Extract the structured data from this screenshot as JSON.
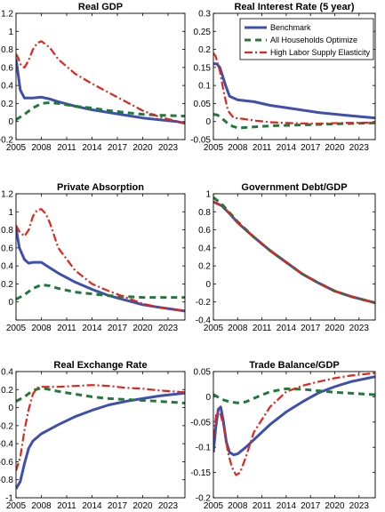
{
  "chart_data": [
    {
      "type": "line",
      "title": "Real GDP",
      "xlim": [
        2005,
        2025
      ],
      "ylim": [
        -0.2,
        1.2
      ],
      "xticks": [
        2005,
        2008,
        2011,
        2014,
        2017,
        2020,
        2023
      ],
      "yticks": [
        -0.2,
        0,
        0.2,
        0.4,
        0.6,
        0.8,
        1,
        1.2
      ],
      "ytick_labels": [
        "-0.2",
        "0",
        "0.2",
        "0.4",
        "0.6",
        "0.8",
        "1",
        "1.2"
      ],
      "series": [
        {
          "style": "benchmark",
          "x": [
            2005,
            2005.5,
            2006,
            2007,
            2008,
            2009,
            2010,
            2012,
            2014,
            2016,
            2018,
            2020,
            2022,
            2024,
            2025
          ],
          "y": [
            0.7,
            0.35,
            0.26,
            0.26,
            0.27,
            0.25,
            0.22,
            0.17,
            0.13,
            0.1,
            0.07,
            0.04,
            0.02,
            0.0,
            -0.02
          ]
        },
        {
          "style": "optimize",
          "x": [
            2005,
            2006,
            2007,
            2008,
            2009,
            2010,
            2012,
            2014,
            2016,
            2018,
            2020,
            2022,
            2025
          ],
          "y": [
            0.02,
            0.08,
            0.15,
            0.2,
            0.21,
            0.2,
            0.17,
            0.15,
            0.12,
            0.1,
            0.08,
            0.07,
            0.06
          ]
        },
        {
          "style": "elastic",
          "x": [
            2005,
            2005.3,
            2005.6,
            2006,
            2006.5,
            2007,
            2007.5,
            2008,
            2009,
            2010,
            2012,
            2014,
            2016,
            2018,
            2020,
            2022,
            2025
          ],
          "y": [
            0.75,
            0.7,
            0.62,
            0.6,
            0.68,
            0.8,
            0.87,
            0.89,
            0.82,
            0.69,
            0.53,
            0.42,
            0.32,
            0.22,
            0.12,
            0.05,
            -0.02
          ]
        }
      ]
    },
    {
      "type": "line",
      "title": "Real Interest Rate (5 year)",
      "xlim": [
        2005,
        2025
      ],
      "ylim": [
        -0.05,
        0.3
      ],
      "xticks": [
        2005,
        2008,
        2011,
        2014,
        2017,
        2020,
        2023
      ],
      "yticks": [
        -0.05,
        0,
        0.05,
        0.1,
        0.15,
        0.2,
        0.25,
        0.3
      ],
      "ytick_labels": [
        "-0.05",
        "0",
        "0.05",
        "0.1",
        "0.15",
        "0.2",
        "0.25",
        "0.3"
      ],
      "series": [
        {
          "style": "benchmark",
          "x": [
            2005,
            2005.4,
            2005.8,
            2006.5,
            2007,
            2008,
            2010,
            2012,
            2015,
            2018,
            2021,
            2025
          ],
          "y": [
            0.16,
            0.16,
            0.15,
            0.1,
            0.07,
            0.06,
            0.055,
            0.045,
            0.035,
            0.025,
            0.018,
            0.01
          ]
        },
        {
          "style": "optimize",
          "x": [
            2005,
            2005.5,
            2006,
            2006.5,
            2007,
            2008,
            2010,
            2012,
            2015,
            2018,
            2021,
            2025
          ],
          "y": [
            0.02,
            0.018,
            0.01,
            0.0,
            -0.01,
            -0.018,
            -0.015,
            -0.012,
            -0.01,
            -0.008,
            -0.006,
            -0.004
          ]
        },
        {
          "style": "elastic",
          "x": [
            2005,
            2005.3,
            2005.8,
            2006.3,
            2006.8,
            2007.5,
            2008.5,
            2010,
            2012,
            2015,
            2018,
            2021,
            2025
          ],
          "y": [
            0.19,
            0.18,
            0.14,
            0.08,
            0.03,
            0.01,
            0.008,
            0.003,
            -0.002,
            -0.005,
            -0.006,
            -0.004,
            -0.003
          ]
        }
      ],
      "legend": {
        "placement": "top-right",
        "entries": [
          "Benchmark",
          "All Households Optimize",
          "High Labor Supply Elasticity"
        ]
      }
    },
    {
      "type": "line",
      "title": "Private Absorption",
      "xlim": [
        2005,
        2025
      ],
      "ylim": [
        -0.2,
        1.2
      ],
      "xticks": [
        2005,
        2008,
        2011,
        2014,
        2017,
        2020,
        2023
      ],
      "yticks": [
        -0.2,
        0,
        0.2,
        0.4,
        0.6,
        0.8,
        1,
        1.2
      ],
      "ytick_labels": [
        "",
        "0",
        "0.2",
        "0.4",
        "0.6",
        "0.8",
        "1",
        "1.2"
      ],
      "series": [
        {
          "style": "benchmark",
          "x": [
            2005,
            2005.4,
            2006,
            2006.5,
            2007,
            2008,
            2009,
            2010,
            2012,
            2014,
            2016,
            2018,
            2020,
            2022,
            2025
          ],
          "y": [
            0.82,
            0.6,
            0.47,
            0.43,
            0.44,
            0.44,
            0.38,
            0.32,
            0.22,
            0.14,
            0.07,
            0.02,
            -0.03,
            -0.06,
            -0.1
          ]
        },
        {
          "style": "optimize",
          "x": [
            2005,
            2006,
            2007,
            2008,
            2009,
            2010,
            2012,
            2014,
            2016,
            2018,
            2020,
            2022,
            2025
          ],
          "y": [
            0.03,
            0.08,
            0.15,
            0.19,
            0.18,
            0.15,
            0.11,
            0.09,
            0.07,
            0.06,
            0.05,
            0.05,
            0.05
          ]
        },
        {
          "style": "elastic",
          "x": [
            2005,
            2005.4,
            2006,
            2006.5,
            2007,
            2007.5,
            2008,
            2008.5,
            2009,
            2010,
            2012,
            2014,
            2016,
            2018,
            2020,
            2022,
            2025
          ],
          "y": [
            0.85,
            0.78,
            0.73,
            0.8,
            0.95,
            1.02,
            1.03,
            0.98,
            0.88,
            0.6,
            0.35,
            0.2,
            0.12,
            0.05,
            -0.02,
            -0.06,
            -0.1
          ]
        }
      ]
    },
    {
      "type": "line",
      "title": "Government Debt/GDP",
      "xlim": [
        2005,
        2025
      ],
      "ylim": [
        -0.4,
        1
      ],
      "xticks": [
        2005,
        2008,
        2011,
        2014,
        2017,
        2020,
        2023
      ],
      "yticks": [
        -0.4,
        -0.2,
        0,
        0.2,
        0.4,
        0.6,
        0.8,
        1
      ],
      "ytick_labels": [
        "-0.4",
        "-0.2",
        "0",
        "0.2",
        "0.4",
        "0.6",
        "0.8",
        "1"
      ],
      "series": [
        {
          "style": "benchmark",
          "x": [
            2005,
            2006,
            2007,
            2008,
            2010,
            2012,
            2014,
            2016,
            2018,
            2020,
            2022,
            2025
          ],
          "y": [
            0.91,
            0.87,
            0.78,
            0.68,
            0.52,
            0.37,
            0.24,
            0.11,
            0.01,
            -0.08,
            -0.14,
            -0.21
          ]
        },
        {
          "style": "optimize",
          "x": [
            2005,
            2006,
            2007,
            2008,
            2010,
            2012,
            2014,
            2016,
            2018,
            2020,
            2022,
            2025
          ],
          "y": [
            0.96,
            0.89,
            0.79,
            0.69,
            0.52,
            0.37,
            0.24,
            0.11,
            0.01,
            -0.08,
            -0.14,
            -0.21
          ]
        },
        {
          "style": "elastic",
          "x": [
            2005,
            2006,
            2007,
            2008,
            2010,
            2012,
            2014,
            2016,
            2018,
            2020,
            2022,
            2025
          ],
          "y": [
            0.91,
            0.87,
            0.78,
            0.68,
            0.52,
            0.37,
            0.24,
            0.11,
            0.01,
            -0.08,
            -0.14,
            -0.21
          ]
        }
      ]
    },
    {
      "type": "line",
      "title": "Real Exchange Rate",
      "xlim": [
        2005,
        2025
      ],
      "ylim": [
        -1,
        0.4
      ],
      "xticks": [
        2005,
        2008,
        2011,
        2014,
        2017,
        2020,
        2023
      ],
      "yticks": [
        -1,
        -0.8,
        -0.6,
        -0.4,
        -0.2,
        0,
        0.2,
        0.4
      ],
      "ytick_labels": [
        "-1",
        "-0.8",
        "-0.6",
        "-0.4",
        "-0.2",
        "0",
        "0.2",
        "0.4"
      ],
      "series": [
        {
          "style": "benchmark",
          "x": [
            2005,
            2005.5,
            2006,
            2006.5,
            2007,
            2008,
            2009,
            2010,
            2012,
            2014,
            2016,
            2018,
            2020,
            2022,
            2025
          ],
          "y": [
            -0.9,
            -0.82,
            -0.62,
            -0.45,
            -0.37,
            -0.29,
            -0.24,
            -0.19,
            -0.1,
            -0.03,
            0.03,
            0.07,
            0.1,
            0.13,
            0.16
          ]
        },
        {
          "style": "optimize",
          "x": [
            2005,
            2006,
            2007,
            2008,
            2009,
            2010,
            2012,
            2014,
            2016,
            2018,
            2020,
            2022,
            2025
          ],
          "y": [
            0.07,
            0.12,
            0.19,
            0.22,
            0.2,
            0.18,
            0.15,
            0.12,
            0.1,
            0.09,
            0.08,
            0.07,
            0.05
          ]
        },
        {
          "style": "elastic",
          "x": [
            2005,
            2005.5,
            2006,
            2006.5,
            2007,
            2007.5,
            2008,
            2010,
            2012,
            2014,
            2016,
            2018,
            2020,
            2022,
            2025
          ],
          "y": [
            -0.7,
            -0.55,
            -0.25,
            -0.02,
            0.15,
            0.22,
            0.23,
            0.23,
            0.24,
            0.25,
            0.24,
            0.22,
            0.21,
            0.19,
            0.17
          ]
        }
      ]
    },
    {
      "type": "line",
      "title": "Trade Balance/GDP",
      "xlim": [
        2005,
        2025
      ],
      "ylim": [
        -0.2,
        0.05
      ],
      "xticks": [
        2005,
        2008,
        2011,
        2014,
        2017,
        2020,
        2023
      ],
      "yticks": [
        -0.2,
        -0.15,
        -0.1,
        -0.05,
        0,
        0.05
      ],
      "ytick_labels": [
        "-0.2",
        "-0.15",
        "-0.1",
        "-0.05",
        "0",
        "0.05"
      ],
      "series": [
        {
          "style": "benchmark",
          "x": [
            2005,
            2005.3,
            2005.6,
            2005.9,
            2006.2,
            2006.6,
            2007,
            2007.5,
            2008,
            2009,
            2010,
            2012,
            2014,
            2016,
            2018,
            2020,
            2022,
            2025
          ],
          "y": [
            -0.11,
            -0.06,
            -0.025,
            -0.02,
            -0.045,
            -0.09,
            -0.11,
            -0.115,
            -0.113,
            -0.1,
            -0.085,
            -0.055,
            -0.03,
            -0.01,
            0.008,
            0.02,
            0.03,
            0.04
          ]
        },
        {
          "style": "optimize",
          "x": [
            2005,
            2006,
            2007,
            2008,
            2009,
            2010,
            2012,
            2014,
            2016,
            2018,
            2020,
            2022,
            2025
          ],
          "y": [
            0.005,
            -0.005,
            -0.01,
            -0.012,
            -0.01,
            -0.003,
            0.01,
            0.016,
            0.015,
            0.012,
            0.009,
            0.007,
            0.004
          ]
        },
        {
          "style": "elastic",
          "x": [
            2005,
            2005.4,
            2005.8,
            2006.3,
            2006.8,
            2007.3,
            2007.8,
            2008.3,
            2009,
            2010,
            2012,
            2014,
            2016,
            2018,
            2020,
            2022,
            2025
          ],
          "y": [
            -0.08,
            -0.03,
            -0.03,
            -0.06,
            -0.11,
            -0.14,
            -0.155,
            -0.15,
            -0.12,
            -0.07,
            -0.02,
            0.01,
            0.022,
            0.03,
            0.037,
            0.042,
            0.047
          ]
        }
      ]
    }
  ]
}
